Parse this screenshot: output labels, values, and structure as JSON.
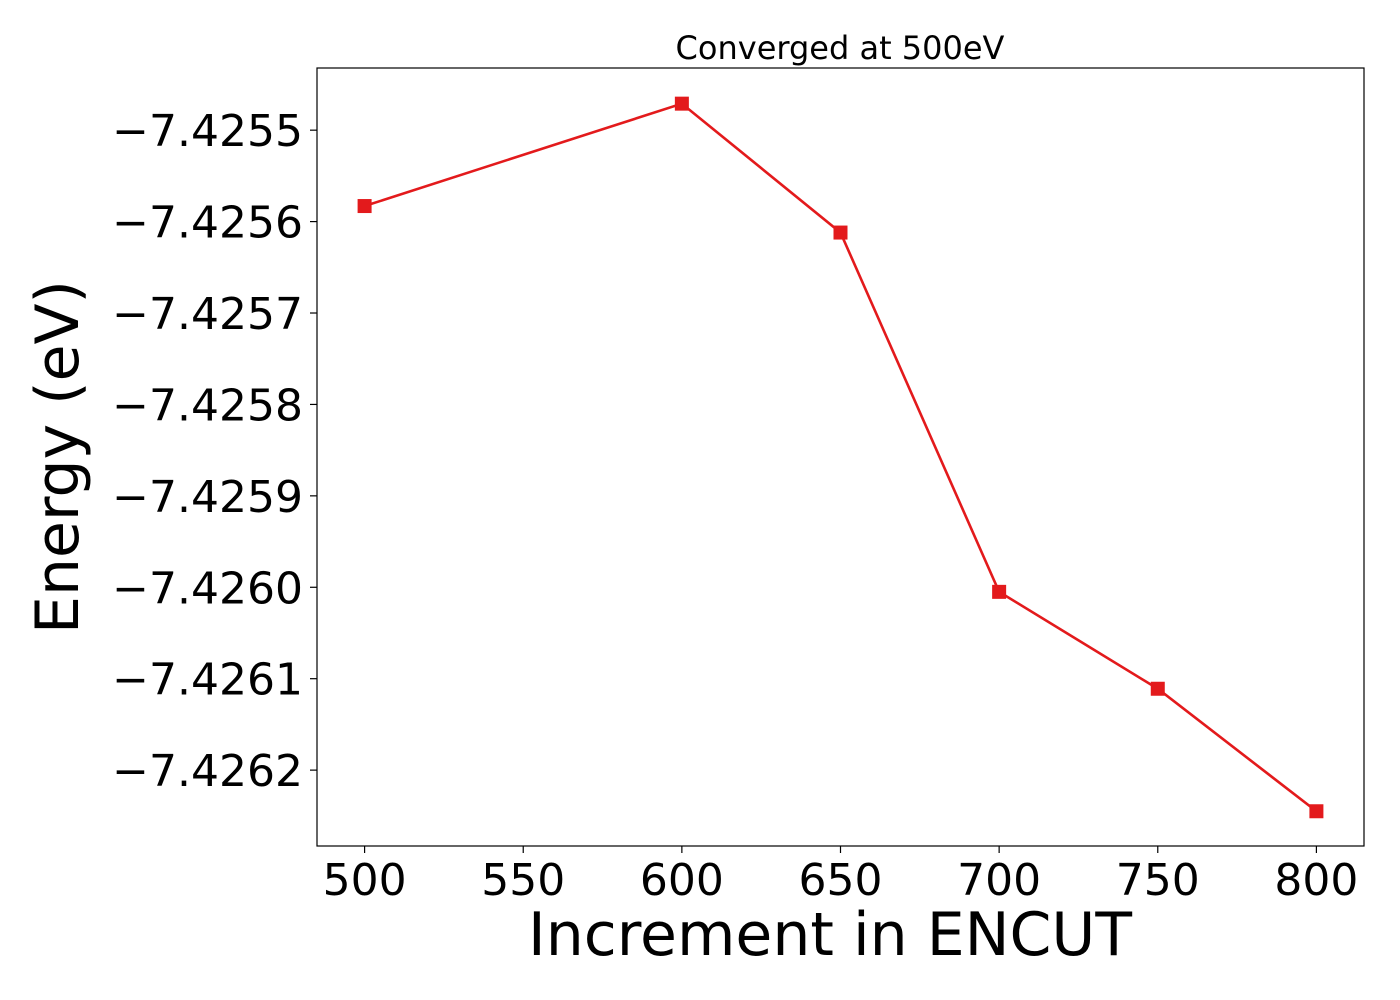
{
  "chart_data": {
    "type": "line",
    "title": "Converged at 500eV",
    "xlabel": "Increment in ENCUT",
    "ylabel": "Energy (eV)",
    "x": [
      500,
      600,
      650,
      700,
      750,
      800
    ],
    "series": [
      {
        "values": [
          -7.425583,
          -7.425471,
          -7.425612,
          -7.426005,
          -7.426111,
          -7.426245
        ]
      }
    ],
    "xticks": [
      500,
      550,
      600,
      650,
      700,
      750,
      800
    ],
    "yticks": [
      -7.4255,
      -7.4256,
      -7.4257,
      -7.4258,
      -7.4259,
      -7.426,
      -7.4261,
      -7.4262
    ],
    "xlim": [
      485,
      815
    ],
    "ylim": [
      -7.426283,
      -7.425432
    ],
    "grid": false,
    "legend": "none",
    "marker": "square",
    "line_color": "#e31a1c"
  }
}
